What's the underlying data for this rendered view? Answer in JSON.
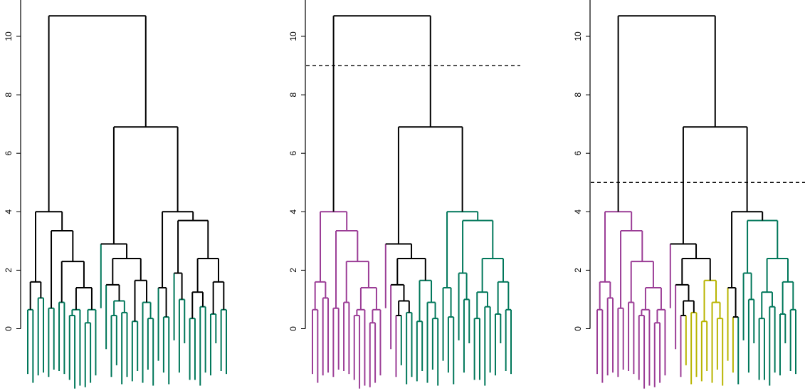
{
  "chart_data": [
    {
      "type": "dendrogram",
      "title": "",
      "xlabel": "",
      "ylabel": "",
      "ylim": [
        0,
        11
      ],
      "yticks": [
        "0",
        "2",
        "4",
        "6",
        "8",
        "10"
      ],
      "cut_height": null,
      "leaf_colors": [
        "#00775a",
        "#00775a",
        "#00775a",
        "#00775a",
        "#00775a",
        "#00775a",
        "#00775a",
        "#00775a",
        "#00775a",
        "#00775a",
        "#00775a",
        "#00775a",
        "#00775a",
        "#00775a",
        "#00775a",
        "#00775a",
        "#00775a",
        "#00775a",
        "#00775a",
        "#00775a",
        "#00775a",
        "#00775a",
        "#00775a",
        "#00775a",
        "#00775a",
        "#00775a",
        "#00775a",
        "#00775a",
        "#00775a",
        "#00775a",
        "#00775a",
        "#00775a",
        "#00775a",
        "#00775a",
        "#00775a",
        "#00775a",
        "#00775a",
        "#00775a",
        "#00775a",
        "#00775a",
        "#00775a",
        "#00775a",
        "#00775a",
        "#00775a",
        "#00775a"
      ]
    },
    {
      "type": "dendrogram",
      "title": "",
      "xlabel": "",
      "ylabel": "",
      "ylim": [
        0,
        11
      ],
      "yticks": [
        "0",
        "2",
        "4",
        "6",
        "8",
        "10"
      ],
      "cut_height": 9,
      "leaf_colors": [
        "#9b3d96",
        "#9b3d96",
        "#9b3d96",
        "#9b3d96",
        "#9b3d96",
        "#9b3d96",
        "#9b3d96",
        "#9b3d96",
        "#9b3d96",
        "#9b3d96",
        "#9b3d96",
        "#9b3d96",
        "#9b3d96",
        "#9b3d96",
        "#9b3d96",
        "#9b3d96",
        "#9b3d96",
        "#00775a",
        "#00775a",
        "#00775a",
        "#00775a",
        "#00775a",
        "#00775a",
        "#00775a",
        "#00775a",
        "#00775a",
        "#00775a",
        "#00775a",
        "#00775a",
        "#00775a",
        "#00775a",
        "#00775a",
        "#00775a",
        "#00775a",
        "#00775a",
        "#00775a",
        "#00775a",
        "#00775a",
        "#00775a",
        "#00775a",
        "#00775a",
        "#00775a",
        "#00775a",
        "#00775a",
        "#00775a"
      ]
    },
    {
      "type": "dendrogram",
      "title": "",
      "xlabel": "",
      "ylabel": "",
      "ylim": [
        0,
        11
      ],
      "yticks": [
        "0",
        "2",
        "4",
        "6",
        "8",
        "10"
      ],
      "cut_height": 5,
      "leaf_colors": [
        "#9b3d96",
        "#9b3d96",
        "#9b3d96",
        "#9b3d96",
        "#9b3d96",
        "#9b3d96",
        "#9b3d96",
        "#9b3d96",
        "#9b3d96",
        "#9b3d96",
        "#9b3d96",
        "#9b3d96",
        "#9b3d96",
        "#9b3d96",
        "#9b3d96",
        "#9b3d96",
        "#9b3d96",
        "#b8b400",
        "#b8b400",
        "#b8b400",
        "#b8b400",
        "#b8b400",
        "#b8b400",
        "#b8b400",
        "#b8b400",
        "#b8b400",
        "#b8b400",
        "#00775a",
        "#00775a",
        "#00775a",
        "#00775a",
        "#00775a",
        "#00775a",
        "#00775a",
        "#00775a",
        "#00775a",
        "#00775a",
        "#00775a",
        "#00775a",
        "#00775a",
        "#00775a",
        "#00775a",
        "#00775a",
        "#00775a",
        "#00775a"
      ]
    }
  ],
  "tree": {
    "h": 10.7,
    "c": [
      {
        "h": 4.0,
        "c": [
          {
            "h": 1.6,
            "c": [
              {
                "h": 0.65,
                "c": [
                  {
                    "b": -1.55
                  },
                  {
                    "b": -1.85
                  }
                ]
              },
              {
                "h": 1.05,
                "c": [
                  {
                    "b": -1.6
                  },
                  {
                    "b": -1.5
                  }
                ]
              }
            ]
          },
          {
            "h": 3.35,
            "c": [
              {
                "h": 0.7,
                "c": [
                  {
                    "b": -1.65
                  },
                  {
                    "b": -1.4
                  }
                ]
              },
              {
                "h": 2.3,
                "c": [
                  {
                    "h": 0.9,
                    "c": [
                      {
                        "b": -1.45
                      },
                      {
                        "b": -1.55
                      }
                    ]
                  },
                  {
                    "h": 1.4,
                    "c": [
                      {
                        "h": 0.65,
                        "c": [
                          {
                            "h": 0.45,
                            "c": [
                              {
                                "b": -1.75
                              },
                              {
                                "b": -2.05
                              }
                            ]
                          },
                          {
                            "b": -1.95
                          }
                        ]
                      },
                      {
                        "h": 0.65,
                        "c": [
                          {
                            "h": 0.2,
                            "c": [
                              {
                                "b": -2.0
                              },
                              {
                                "b": -1.85
                              }
                            ]
                          },
                          {
                            "b": -1.6
                          }
                        ]
                      }
                    ]
                  }
                ]
              }
            ]
          }
        ]
      },
      {
        "h": 6.9,
        "c": [
          {
            "h": 2.9,
            "c": [
              {
                "b": 0.7
              },
              {
                "h": 2.4,
                "c": [
                  {
                    "h": 1.5,
                    "c": [
                      {
                        "b": -0.7
                      },
                      {
                        "h": 0.95,
                        "c": [
                          {
                            "h": 0.45,
                            "c": [
                              {
                                "b": -1.65
                              },
                              {
                                "b": -1.25
                              }
                            ]
                          },
                          {
                            "h": 0.55,
                            "c": [
                              {
                                "b": -1.9
                              },
                              {
                                "b": -1.65
                              }
                            ]
                          }
                        ]
                      }
                    ]
                  },
                  {
                    "h": 1.65,
                    "c": [
                      {
                        "h": 0.25,
                        "c": [
                          {
                            "b": -1.8
                          },
                          {
                            "b": -1.45
                          }
                        ]
                      },
                      {
                        "h": 0.9,
                        "c": [
                          {
                            "b": -1.85
                          },
                          {
                            "h": 0.35,
                            "c": [
                              {
                                "b": -1.4
                              },
                              {
                                "b": -1.95
                              }
                            ]
                          }
                        ]
                      }
                    ]
                  }
                ]
              }
            ]
          },
          {
            "h": 4.0,
            "c": [
              {
                "h": 1.4,
                "c": [
                  {
                    "b": -1.1
                  },
                  {
                    "h": 0.4,
                    "c": [
                      {
                        "b": -1.5
                      },
                      {
                        "b": -1.9
                      }
                    ]
                  }
                ]
              },
              {
                "h": 3.7,
                "c": [
                  {
                    "h": 1.9,
                    "c": [
                      {
                        "b": -0.4
                      },
                      {
                        "h": 1.0,
                        "c": [
                          {
                            "b": -1.5
                          },
                          {
                            "b": -0.5
                          }
                        ]
                      }
                    ]
                  },
                  {
                    "h": 2.4,
                    "c": [
                      {
                        "h": 1.25,
                        "c": [
                          {
                            "h": 0.35,
                            "c": [
                              {
                                "b": -1.75
                              },
                              {
                                "b": -1.75
                              }
                            ]
                          },
                          {
                            "h": 0.75,
                            "c": [
                              {
                                "b": -1.95
                              },
                              {
                                "b": -1.5
                              }
                            ]
                          }
                        ]
                      },
                      {
                        "h": 1.6,
                        "c": [
                          {
                            "h": 0.5,
                            "c": [
                              {
                                "b": -1.6
                              },
                              {
                                "b": -0.5
                              }
                            ]
                          },
                          {
                            "h": 0.65,
                            "c": [
                              {
                                "b": -1.45
                              },
                              {
                                "b": -1.55
                              }
                            ]
                          }
                        ]
                      }
                    ]
                  }
                ]
              }
            ]
          }
        ]
      }
    ]
  }
}
